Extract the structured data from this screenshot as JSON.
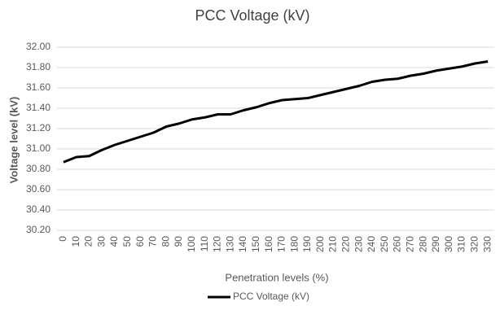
{
  "chart_data": {
    "type": "line",
    "title": "PCC Voltage (kV)",
    "x_label": "Penetration levels (%)",
    "y_label": "Voltage level (kV)",
    "categories": [
      0,
      10,
      20,
      30,
      40,
      50,
      60,
      70,
      80,
      90,
      100,
      110,
      120,
      130,
      140,
      150,
      160,
      170,
      180,
      190,
      200,
      210,
      220,
      230,
      240,
      250,
      260,
      270,
      280,
      290,
      300,
      310,
      320,
      330
    ],
    "series": [
      {
        "name": "PCC Voltage (kV)",
        "color": "#000000",
        "values": [
          30.87,
          30.92,
          30.93,
          30.99,
          31.04,
          31.08,
          31.12,
          31.16,
          31.22,
          31.25,
          31.29,
          31.31,
          31.34,
          31.34,
          31.38,
          31.41,
          31.45,
          31.48,
          31.49,
          31.5,
          31.53,
          31.56,
          31.59,
          31.62,
          31.66,
          31.68,
          31.69,
          31.72,
          31.74,
          31.77,
          31.79,
          31.81,
          31.84,
          31.86
        ]
      }
    ],
    "ylim": [
      30.2,
      32.0
    ],
    "yticks": [
      {
        "value": 30.2,
        "label": "30.20"
      },
      {
        "value": 30.4,
        "label": "30.40"
      },
      {
        "value": 30.6,
        "label": "30.60"
      },
      {
        "value": 30.8,
        "label": "30.80"
      },
      {
        "value": 31.0,
        "label": "31.00"
      },
      {
        "value": 31.2,
        "label": "31.20"
      },
      {
        "value": 31.4,
        "label": "31.40"
      },
      {
        "value": 31.6,
        "label": "31.60"
      },
      {
        "value": 31.8,
        "label": "31.80"
      },
      {
        "value": 32.0,
        "label": "32.00"
      }
    ],
    "grid": true,
    "legend": "bottom"
  }
}
